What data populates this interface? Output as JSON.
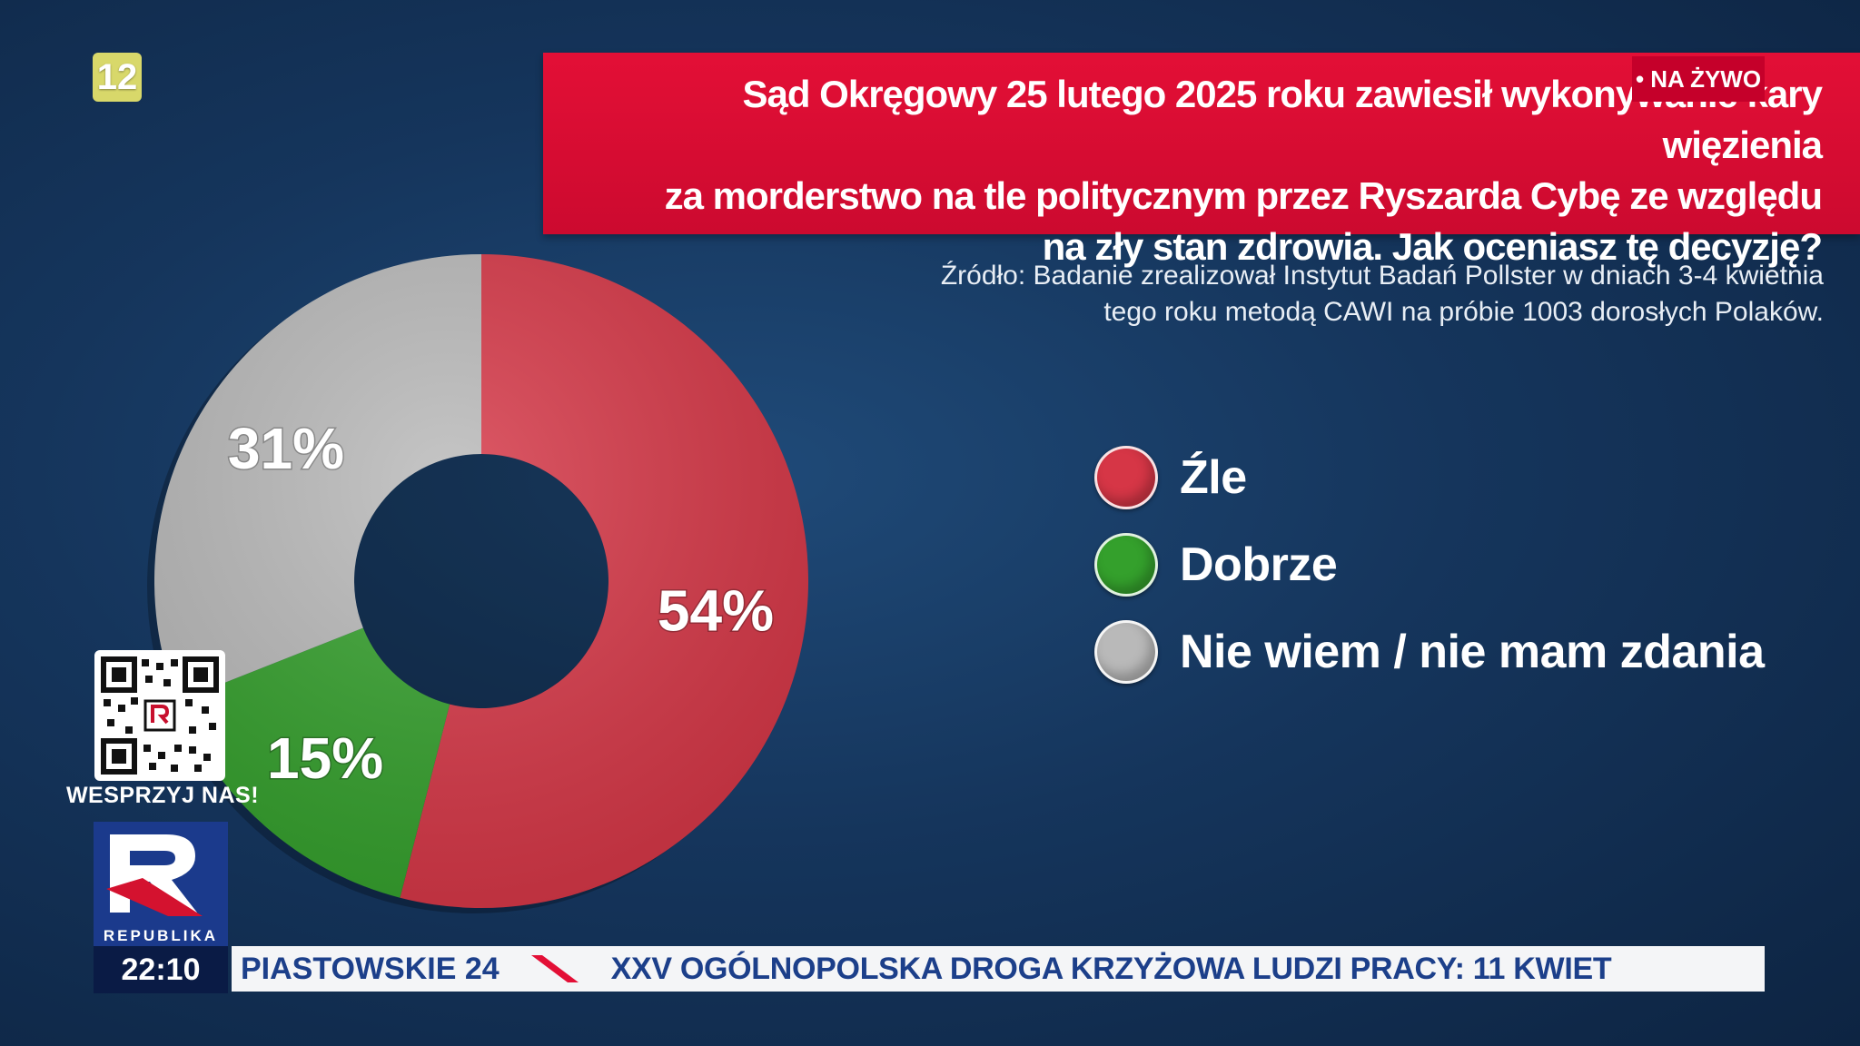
{
  "channel": {
    "age_rating": "12",
    "live_label": "• NA ŻYWO",
    "support_label": "WESPRZYJ NAS!",
    "logo_text": "REPUBLIKA",
    "clock": "22:10"
  },
  "colors": {
    "banner": "#e30f36",
    "zle": "#d63646",
    "dobrze": "#34a02c",
    "nie_wiem": "#b9b9b9",
    "background": "#15355c",
    "ticker_text": "#1c3f8a"
  },
  "banner": {
    "line1": "Sąd Okręgowy 25 lutego 2025 roku zawiesił wykonywanie kary więzienia",
    "line2": "za morderstwo na tle politycznym przez Ryszarda Cybę ze względu",
    "line3": "na zły stan zdrowia. Jak oceniasz tę decyzję?"
  },
  "source": {
    "line1": "Źródło: Badanie zrealizował Instytut Badań Pollster w dniach 3-4 kwietnia",
    "line2": "tego roku metodą CAWI na próbie 1003 dorosłych Polaków."
  },
  "chart_data": {
    "type": "pie",
    "variant": "donut",
    "unit": "%",
    "categories": [
      "Źle",
      "Dobrze",
      "Nie wiem / nie mam zdania"
    ],
    "values": [
      54,
      15,
      31
    ],
    "labels": [
      "54%",
      "15%",
      "31%"
    ],
    "colors": [
      "#d63646",
      "#34a02c",
      "#b9b9b9"
    ],
    "legend_position": "right"
  },
  "ticker": {
    "program": "PIASTOWSKIE 24",
    "news": "XXV OGÓLNOPOLSKA DROGA KRZYŻOWA LUDZI PRACY: 11 KWIET"
  }
}
